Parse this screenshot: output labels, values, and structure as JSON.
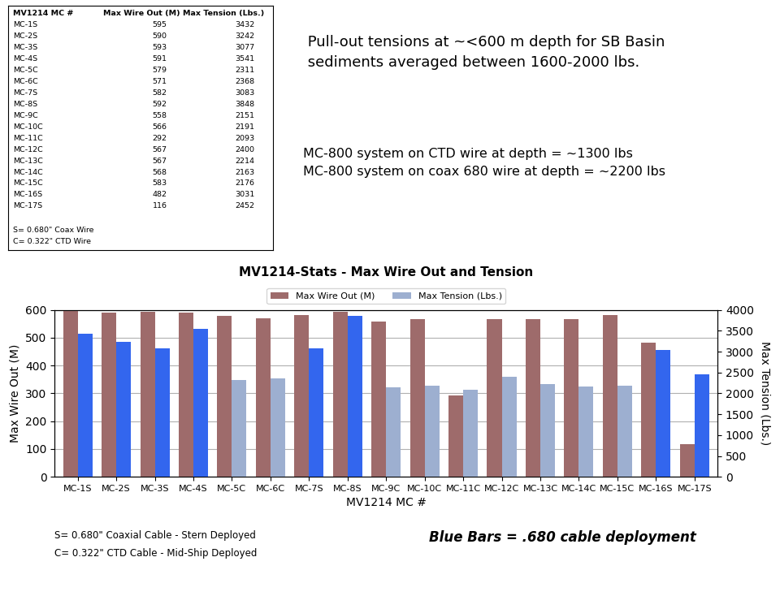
{
  "chart_data": {
    "type": "bar",
    "title": "MV1214-Stats - Max Wire Out and Tension",
    "categories": [
      "MC-1S",
      "MC-2S",
      "MC-3S",
      "MC-4S",
      "MC-5C",
      "MC-6C",
      "MC-7S",
      "MC-8S",
      "MC-9C",
      "MC-10C",
      "MC-11C",
      "MC-12C",
      "MC-13C",
      "MC-14C",
      "MC-15C",
      "MC-16S",
      "MC-17S"
    ],
    "series": [
      {
        "name": "Max Wire Out (M)",
        "color": "#9e6b6b",
        "values": [
          595,
          590,
          593,
          591,
          579,
          571,
          582,
          592,
          558,
          566,
          292,
          567,
          567,
          568,
          583,
          482,
          116
        ]
      },
      {
        "name": "Max Tension (Lbs.)",
        "axis": "y2",
        "color": "#9dafd0",
        "colors": [
          "#3366ee",
          "#3366ee",
          "#3366ee",
          "#3366ee",
          "#9dafd0",
          "#9dafd0",
          "#3366ee",
          "#3366ee",
          "#9dafd0",
          "#9dafd0",
          "#9dafd0",
          "#9dafd0",
          "#9dafd0",
          "#9dafd0",
          "#9dafd0",
          "#3366ee",
          "#3366ee"
        ],
        "values": [
          3432,
          3242,
          3077,
          3541,
          2311,
          2368,
          3083,
          3848,
          2151,
          2191,
          2093,
          2400,
          2214,
          2163,
          2176,
          3031,
          2452
        ]
      }
    ],
    "xlabel": "MV1214 MC #",
    "ylabel": "Max Wire Out (M)",
    "y2label": "Max Tension (Lbs.)",
    "ylim": [
      0,
      600
    ],
    "yticks": [
      0,
      100,
      200,
      300,
      400,
      500,
      600
    ],
    "y2lim": [
      0,
      4000
    ],
    "y2ticks": [
      0,
      500,
      1000,
      1500,
      2000,
      2500,
      3000,
      3500,
      4000
    ],
    "grid": true,
    "legend": "upper center",
    "table": {
      "header": [
        "MV1214 MC #",
        "Max Wire Out (M)",
        "Max Tension (Lbs.)"
      ],
      "footnotes": [
        "S= 0.680\" Coax Wire",
        "C= 0.322\" CTD Wire"
      ]
    },
    "annotations": [
      " Pull-out tensions at ~<600 m depth for SB Basin\n sediments averaged between 1600-2000 lbs.",
      "MC-800 system on CTD wire at depth = ~1300 lbs\nMC-800 system on coax 680 wire at depth = ~2200 lbs",
      "S= 0.680\" Coaxial Cable - Stern Deployed",
      "C= 0.322\" CTD Cable - Mid-Ship Deployed",
      "Blue Bars = .680 cable deployment"
    ]
  }
}
